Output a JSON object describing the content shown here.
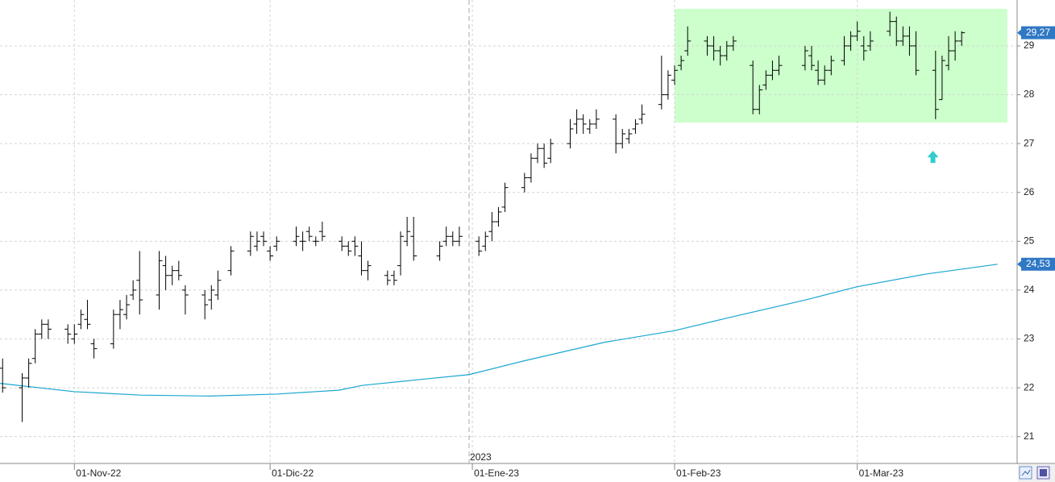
{
  "chart_data": {
    "type": "ohlc",
    "x": [
      -11,
      -8,
      -7,
      -6,
      -5,
      -4,
      -1,
      0,
      1,
      2,
      3,
      6,
      7,
      8,
      9,
      10,
      13,
      14,
      15,
      16,
      17,
      20,
      21,
      22,
      24,
      27,
      28,
      29,
      30,
      31,
      34,
      35,
      36,
      37,
      38,
      41,
      42,
      43,
      44,
      45,
      48,
      49,
      50,
      51,
      52,
      56,
      57,
      58,
      59,
      62,
      63,
      64,
      65,
      66,
      69,
      70,
      71,
      72,
      73,
      76,
      77,
      78,
      79,
      80,
      83,
      84,
      85,
      86,
      87,
      90,
      91,
      92,
      93,
      94,
      97,
      98,
      99,
      100,
      101,
      104,
      105,
      106,
      107,
      108,
      112,
      113,
      114,
      115,
      116,
      118,
      119,
      120,
      121,
      122,
      125,
      126,
      127,
      128,
      129,
      132,
      133,
      134,
      135,
      136
    ],
    "open": [
      22.4,
      22.0,
      22.2,
      22.6,
      23.1,
      23.3,
      23.2,
      23.0,
      23.3,
      23.4,
      22.9,
      22.9,
      23.5,
      23.5,
      23.9,
      24.2,
      23.9,
      24.5,
      24.3,
      24.4,
      24.0,
      23.9,
      23.8,
      23.9,
      24.4,
      24.8,
      24.9,
      25.1,
      24.8,
      24.9,
      25.0,
      25.0,
      25.2,
      25.0,
      25.2,
      25.0,
      24.9,
      25.0,
      24.7,
      24.4,
      24.3,
      24.3,
      24.5,
      25.0,
      25.1,
      24.7,
      25.0,
      25.1,
      25.0,
      25.0,
      24.9,
      25.2,
      25.4,
      25.7,
      26.1,
      26.3,
      26.7,
      26.9,
      26.7,
      27.0,
      27.4,
      27.5,
      27.3,
      27.4,
      27.5,
      27.0,
      27.1,
      27.3,
      27.5,
      27.8,
      28.0,
      28.3,
      28.6,
      28.9,
      29.1,
      29.0,
      28.9,
      28.8,
      29.0,
      28.6,
      27.7,
      28.2,
      28.4,
      28.5,
      28.6,
      28.8,
      28.5,
      28.3,
      28.5,
      28.7,
      29.0,
      29.2,
      29.0,
      29.0,
      29.3,
      29.5,
      29.1,
      29.2,
      29.0,
      28.5,
      27.9,
      28.6,
      28.9,
      29.1
    ],
    "high": [
      22.6,
      22.3,
      22.6,
      23.2,
      23.4,
      23.4,
      23.3,
      23.3,
      23.6,
      23.8,
      23.0,
      23.6,
      23.8,
      23.9,
      24.2,
      24.8,
      24.8,
      24.7,
      24.5,
      24.6,
      24.1,
      24.0,
      24.1,
      24.4,
      24.9,
      25.2,
      25.2,
      25.2,
      24.9,
      25.1,
      25.3,
      25.2,
      25.3,
      25.1,
      25.4,
      25.1,
      25.0,
      25.1,
      25.0,
      24.6,
      24.4,
      24.4,
      25.2,
      25.5,
      25.5,
      25.0,
      25.3,
      25.2,
      25.3,
      25.1,
      25.2,
      25.6,
      25.7,
      26.2,
      26.4,
      26.8,
      27.0,
      27.0,
      27.1,
      27.5,
      27.7,
      27.6,
      27.5,
      27.7,
      27.6,
      27.3,
      27.3,
      27.5,
      27.8,
      28.8,
      28.5,
      28.6,
      28.8,
      29.4,
      29.2,
      29.2,
      29.0,
      29.1,
      29.2,
      28.7,
      28.2,
      28.5,
      28.7,
      28.8,
      29.0,
      29.0,
      28.7,
      28.6,
      28.8,
      29.2,
      29.3,
      29.5,
      29.2,
      29.3,
      29.7,
      29.6,
      29.4,
      29.4,
      29.3,
      28.9,
      28.8,
      29.2,
      29.3,
      29.3
    ],
    "low": [
      21.9,
      21.3,
      22.0,
      22.5,
      23.0,
      23.0,
      22.9,
      22.9,
      23.2,
      23.2,
      22.6,
      22.8,
      23.2,
      23.4,
      23.8,
      23.5,
      23.6,
      24.0,
      24.1,
      24.2,
      23.5,
      23.4,
      23.6,
      23.8,
      24.3,
      24.7,
      24.8,
      24.9,
      24.6,
      24.8,
      24.9,
      24.8,
      25.0,
      24.9,
      25.0,
      24.8,
      24.7,
      24.7,
      24.3,
      24.2,
      24.1,
      24.1,
      24.3,
      24.9,
      24.6,
      24.6,
      24.9,
      24.9,
      24.9,
      24.7,
      24.8,
      25.0,
      25.3,
      25.6,
      26.0,
      26.2,
      26.6,
      26.5,
      26.6,
      26.9,
      27.2,
      27.2,
      27.2,
      27.3,
      26.8,
      26.9,
      27.0,
      27.2,
      27.4,
      27.7,
      27.9,
      28.2,
      28.5,
      28.8,
      28.8,
      28.7,
      28.6,
      28.7,
      28.9,
      27.6,
      27.6,
      28.1,
      28.3,
      28.4,
      28.5,
      28.5,
      28.2,
      28.2,
      28.4,
      28.6,
      28.9,
      29.1,
      28.7,
      28.9,
      29.2,
      29.0,
      29.0,
      28.8,
      28.4,
      27.5,
      27.9,
      28.5,
      28.7,
      29.0
    ],
    "close": [
      22.0,
      22.2,
      22.5,
      23.1,
      23.3,
      23.2,
      23.1,
      23.1,
      23.5,
      23.3,
      22.8,
      23.5,
      23.6,
      23.7,
      24.0,
      23.8,
      24.6,
      24.3,
      24.4,
      24.3,
      23.9,
      23.7,
      24.0,
      24.2,
      24.8,
      25.1,
      25.0,
      25.0,
      24.7,
      25.0,
      25.1,
      25.0,
      25.1,
      25.0,
      25.1,
      24.9,
      24.8,
      24.9,
      24.4,
      24.5,
      24.2,
      24.2,
      25.1,
      25.2,
      24.7,
      24.9,
      25.1,
      25.0,
      25.1,
      24.8,
      25.1,
      25.4,
      25.6,
      26.1,
      26.3,
      26.7,
      26.9,
      26.6,
      27.0,
      27.3,
      27.5,
      27.4,
      27.4,
      27.5,
      27.0,
      27.2,
      27.2,
      27.4,
      27.6,
      28.0,
      28.4,
      28.5,
      28.7,
      29.1,
      29.0,
      28.9,
      28.8,
      29.0,
      29.1,
      27.7,
      28.1,
      28.4,
      28.5,
      28.6,
      28.9,
      28.6,
      28.3,
      28.5,
      28.7,
      29.0,
      29.2,
      29.3,
      28.9,
      29.1,
      29.5,
      29.1,
      29.2,
      29.0,
      28.5,
      27.7,
      28.7,
      28.9,
      29.1,
      29.27
    ],
    "color": "#000000",
    "ma": {
      "x": [
        -11.4,
        0,
        10.2,
        20.7,
        31,
        40.5,
        44.2,
        60.5,
        68.9,
        81.2,
        92,
        99.8,
        112.1,
        120,
        130.6,
        141.5
      ],
      "values": [
        22.09,
        21.92,
        21.85,
        21.83,
        21.87,
        21.95,
        22.05,
        22.27,
        22.55,
        22.93,
        23.17,
        23.42,
        23.8,
        24.07,
        24.33,
        24.53
      ],
      "color": "#1aa7d0"
    },
    "price_tag": {
      "value": 29.27,
      "label": "29,27"
    },
    "ma_tag": {
      "value": 24.53,
      "label": "24,53"
    },
    "range_box": {
      "x": [
        92,
        143
      ],
      "y": [
        27.43,
        29.76
      ],
      "color": "#ccffcc"
    },
    "arrow": {
      "x": 131.6,
      "y": 26.72,
      "color": "#33cccc"
    },
    "year_marker": {
      "x": 60.5,
      "label": "2023"
    },
    "xlim": [
      -11.4,
      144.5
    ],
    "ylim": [
      20.45,
      29.94
    ],
    "xticks": [
      {
        "value": 0,
        "label": "01-Nov-22"
      },
      {
        "value": 30,
        "label": "01-Dic-22"
      },
      {
        "value": 61,
        "label": "01-Ene-23"
      },
      {
        "value": 92,
        "label": "01-Feb-23"
      },
      {
        "value": 120,
        "label": "01-Mar-23"
      }
    ],
    "yticks": [
      21,
      22,
      23,
      24,
      25,
      26,
      27,
      28,
      29
    ],
    "grid": true
  }
}
